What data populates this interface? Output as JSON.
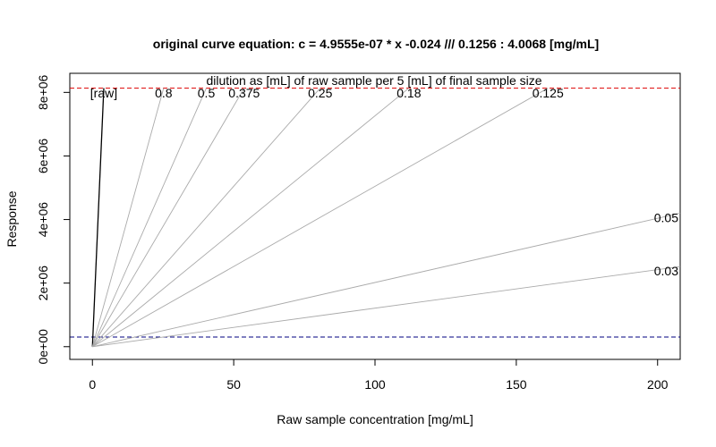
{
  "chart_data": {
    "type": "line",
    "title": "original curve equation: c  = 4.9555e-07 * x -0.024  ///  0.1256 : 4.0068 [mg/mL]",
    "subtitle": "dilution as [mL] of raw sample per 5 [mL] of final sample size",
    "xlabel": "Raw sample concentration [mg/mL]",
    "ylabel": "Response",
    "xlim": [
      -8,
      208
    ],
    "ylim": [
      -400000,
      8600000
    ],
    "x_ticks": [
      0,
      50,
      100,
      150,
      200
    ],
    "x_tick_labels": [
      "0",
      "50",
      "100",
      "150",
      "200"
    ],
    "y_ticks": [
      0,
      2000000,
      4000000,
      6000000,
      8000000
    ],
    "y_tick_labels": [
      "0e+00",
      "2e+06",
      "4e+06",
      "6e+06",
      "8e+06"
    ],
    "grid": false,
    "reference_lines": [
      {
        "axis": "y",
        "value": 8134000,
        "style": "dashed",
        "color": "#dd0000"
      },
      {
        "axis": "y",
        "value": 302000,
        "style": "dashed",
        "color": "#000080"
      }
    ],
    "series": [
      {
        "name": "[raw]",
        "x": [
          0,
          4.03
        ],
        "y": [
          0,
          8134000
        ],
        "color": "#000000",
        "label_pos": "top"
      },
      {
        "name": "0.8",
        "x": [
          0,
          25.2
        ],
        "y": [
          0,
          8134000
        ],
        "color": "#aaaaaa",
        "label_pos": "top"
      },
      {
        "name": "0.5",
        "x": [
          0,
          40.3
        ],
        "y": [
          0,
          8134000
        ],
        "color": "#aaaaaa",
        "label_pos": "top"
      },
      {
        "name": "0.375",
        "x": [
          0,
          53.7
        ],
        "y": [
          0,
          8134000
        ],
        "color": "#aaaaaa",
        "label_pos": "top"
      },
      {
        "name": "0.25",
        "x": [
          0,
          80.6
        ],
        "y": [
          0,
          8134000
        ],
        "color": "#aaaaaa",
        "label_pos": "top"
      },
      {
        "name": "0.18",
        "x": [
          0,
          112
        ],
        "y": [
          0,
          8134000
        ],
        "color": "#aaaaaa",
        "label_pos": "top"
      },
      {
        "name": "0.125",
        "x": [
          0,
          161.2
        ],
        "y": [
          0,
          8134000
        ],
        "color": "#aaaaaa",
        "label_pos": "top"
      },
      {
        "name": "0.05",
        "x": [
          0,
          208
        ],
        "y": [
          0,
          4200000
        ],
        "color": "#aaaaaa",
        "label_pos": "right"
      },
      {
        "name": "0.03",
        "x": [
          0,
          208
        ],
        "y": [
          0,
          2520000
        ],
        "color": "#aaaaaa",
        "label_pos": "right"
      }
    ]
  }
}
